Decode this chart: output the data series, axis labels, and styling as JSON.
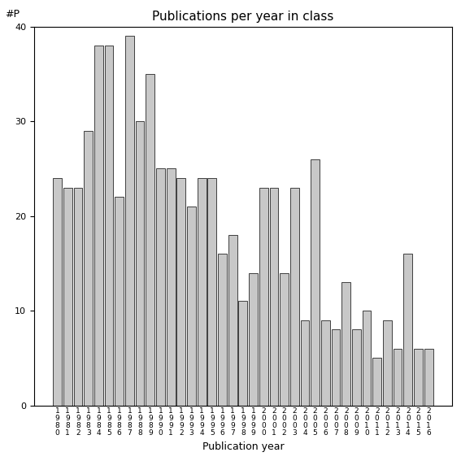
{
  "title": "Publications per year in class",
  "xlabel": "Publication year",
  "ylabel": "#P",
  "years": [
    "1980",
    "1981",
    "1982",
    "1983",
    "1984",
    "1985",
    "1986",
    "1987",
    "1988",
    "1989",
    "1990",
    "1991",
    "1992",
    "1993",
    "1994",
    "1995",
    "1996",
    "1997",
    "1998",
    "1999",
    "2000",
    "2001",
    "2002",
    "2003",
    "2004",
    "2005",
    "2006",
    "2007",
    "2008",
    "2009",
    "2010",
    "2011",
    "2012",
    "2013",
    "2014",
    "2015",
    "2016"
  ],
  "values": [
    24,
    23,
    23,
    29,
    38,
    38,
    22,
    39,
    30,
    35,
    25,
    25,
    24,
    21,
    24,
    24,
    16,
    18,
    11,
    14,
    23,
    23,
    14,
    23,
    9,
    26,
    9,
    8,
    13,
    8,
    10,
    5,
    9,
    6,
    16,
    6,
    6
  ],
  "bar_color": "#c8c8c8",
  "bar_edgecolor": "#000000",
  "ylim": [
    0,
    40
  ],
  "yticks": [
    0,
    10,
    20,
    30,
    40
  ],
  "background_color": "#ffffff",
  "title_fontsize": 11,
  "axis_label_fontsize": 9,
  "tick_fontsize": 8,
  "xtick_fontsize": 6.5
}
